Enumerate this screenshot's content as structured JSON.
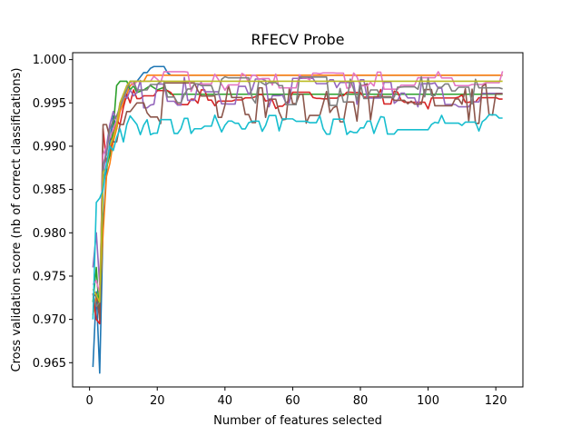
{
  "chart_data": {
    "type": "line",
    "title": "RFECV Probe",
    "xlabel": "Number of features selected",
    "ylabel": "Cross validation score (nb of correct classifications)",
    "xlim": [
      -5,
      128
    ],
    "ylim": [
      0.9622,
      1.0008
    ],
    "xticks": [
      0,
      20,
      40,
      60,
      80,
      100,
      120
    ],
    "yticks": [
      0.965,
      0.97,
      0.975,
      0.98,
      0.985,
      0.99,
      0.995,
      1.0
    ],
    "ytick_labels": [
      "0.965",
      "0.970",
      "0.975",
      "0.980",
      "0.985",
      "0.990",
      "0.995",
      "1.000"
    ],
    "grid": false,
    "x_start": 1,
    "x_end": 122,
    "series": [
      {
        "color": "#1f77b4",
        "values": [
          [
            1,
            0.9645
          ],
          [
            2,
            0.9732
          ],
          [
            3,
            0.9638
          ],
          [
            4,
            0.981
          ],
          [
            5,
            0.987
          ],
          [
            6,
            0.9905
          ],
          [
            7,
            0.9935
          ],
          [
            8,
            0.992
          ],
          [
            9,
            0.9945
          ],
          [
            10,
            0.996
          ],
          [
            11,
            0.9965
          ],
          [
            12,
            0.9975
          ],
          [
            14,
            0.9975
          ],
          [
            15,
            0.998
          ],
          [
            16,
            0.9985
          ],
          [
            17,
            0.9985
          ],
          [
            18,
            0.999
          ],
          [
            19,
            0.9992
          ],
          [
            22,
            0.9992
          ],
          [
            23,
            0.9985
          ],
          [
            24,
            0.9982
          ],
          [
            120,
            0.9982
          ],
          [
            122,
            0.9982
          ]
        ]
      },
      {
        "color": "#ff7f0e",
        "values": [
          [
            1,
            0.9705
          ],
          [
            2,
            0.9725
          ],
          [
            3,
            0.972
          ],
          [
            4,
            0.98
          ],
          [
            5,
            0.9865
          ],
          [
            6,
            0.988
          ],
          [
            7,
            0.9905
          ],
          [
            8,
            0.992
          ],
          [
            9,
            0.994
          ],
          [
            10,
            0.995
          ],
          [
            11,
            0.996
          ],
          [
            12,
            0.997
          ],
          [
            14,
            0.9975
          ],
          [
            16,
            0.9975
          ],
          [
            17,
            0.9982
          ],
          [
            122,
            0.9982
          ]
        ]
      },
      {
        "color": "#2ca02c",
        "values": [
          [
            1,
            0.972
          ],
          [
            2,
            0.976
          ],
          [
            3,
            0.97
          ],
          [
            4,
            0.986
          ],
          [
            5,
            0.9875
          ],
          [
            6,
            0.989
          ],
          [
            7,
            0.992
          ],
          [
            8,
            0.997
          ],
          [
            9,
            0.9975
          ],
          [
            11,
            0.9975
          ],
          [
            12,
            0.9965
          ],
          [
            13,
            0.997
          ],
          [
            14,
            0.9962
          ],
          [
            16,
            0.9965
          ],
          [
            18,
            0.997
          ],
          [
            20,
            0.9965
          ],
          [
            22,
            0.9968
          ],
          [
            24,
            0.996
          ],
          [
            122,
            0.996
          ]
        ]
      },
      {
        "color": "#d62728",
        "values": [
          [
            1,
            0.973
          ],
          [
            2,
            0.97
          ],
          [
            3,
            0.9695
          ],
          [
            4,
            0.992
          ],
          [
            5,
            0.988
          ],
          [
            6,
            0.9895
          ],
          [
            7,
            0.991
          ],
          [
            8,
            0.993
          ],
          [
            9,
            0.9925
          ],
          [
            10,
            0.9945
          ],
          [
            11,
            0.996
          ],
          [
            12,
            0.995
          ],
          [
            13,
            0.9965
          ],
          [
            14,
            0.9955
          ]
        ]
      },
      {
        "color": "#9467bd",
        "values": [
          [
            1,
            0.976
          ],
          [
            2,
            0.98
          ],
          [
            3,
            0.974
          ],
          [
            4,
            0.9865
          ],
          [
            5,
            0.99
          ],
          [
            6,
            0.9925
          ],
          [
            7,
            0.994
          ],
          [
            8,
            0.993
          ],
          [
            9,
            0.995
          ],
          [
            10,
            0.996
          ],
          [
            11,
            0.9955
          ],
          [
            12,
            0.9965
          ],
          [
            13,
            0.9958
          ],
          [
            14,
            0.9962
          ]
        ]
      },
      {
        "color": "#8c564b",
        "values": [
          [
            1,
            0.9725
          ],
          [
            2,
            0.973
          ],
          [
            3,
            0.97
          ],
          [
            4,
            0.9925
          ],
          [
            5,
            0.9925
          ],
          [
            6,
            0.991
          ],
          [
            7,
            0.9905
          ],
          [
            8,
            0.9905
          ],
          [
            9,
            0.9925
          ],
          [
            10,
            0.9925
          ],
          [
            11,
            0.994
          ],
          [
            12,
            0.994
          ],
          [
            13,
            0.9945
          ],
          [
            14,
            0.995
          ]
        ]
      },
      {
        "color": "#e377c2",
        "values": [
          [
            1,
            0.974
          ],
          [
            2,
            0.9745
          ],
          [
            3,
            0.973
          ],
          [
            4,
            0.989
          ],
          [
            5,
            0.99
          ],
          [
            6,
            0.991
          ],
          [
            7,
            0.992
          ],
          [
            8,
            0.993
          ],
          [
            9,
            0.9945
          ],
          [
            10,
            0.996
          ],
          [
            11,
            0.997
          ],
          [
            12,
            0.9975
          ],
          [
            13,
            0.997
          ],
          [
            14,
            0.9975
          ]
        ]
      },
      {
        "color": "#7f7f7f",
        "values": [
          [
            1,
            0.973
          ],
          [
            2,
            0.9715
          ],
          [
            3,
            0.972
          ],
          [
            4,
            0.988
          ],
          [
            5,
            0.989
          ],
          [
            6,
            0.992
          ],
          [
            7,
            0.993
          ],
          [
            8,
            0.9935
          ],
          [
            9,
            0.9945
          ],
          [
            10,
            0.9955
          ],
          [
            11,
            0.9965
          ],
          [
            12,
            0.9975
          ],
          [
            13,
            0.9975
          ],
          [
            14,
            0.9965
          ]
        ]
      },
      {
        "color": "#bcbd22",
        "values": [
          [
            1,
            0.9735
          ],
          [
            2,
            0.9728
          ],
          [
            3,
            0.972
          ],
          [
            4,
            0.987
          ],
          [
            5,
            0.9875
          ],
          [
            6,
            0.99
          ],
          [
            7,
            0.991
          ],
          [
            8,
            0.9925
          ],
          [
            9,
            0.995
          ],
          [
            10,
            0.996
          ],
          [
            11,
            0.997
          ],
          [
            12,
            0.9975
          ],
          [
            122,
            0.9975
          ]
        ]
      },
      {
        "color": "#17becf",
        "values": [
          [
            1,
            0.97
          ],
          [
            2,
            0.9835
          ],
          [
            3,
            0.984
          ],
          [
            4,
            0.985
          ],
          [
            5,
            0.988
          ],
          [
            6,
            0.99
          ],
          [
            7,
            0.9895
          ],
          [
            8,
            0.991
          ],
          [
            9,
            0.992
          ],
          [
            10,
            0.9905
          ],
          [
            11,
            0.9925
          ],
          [
            12,
            0.9935
          ],
          [
            13,
            0.993
          ],
          [
            14,
            0.9925
          ]
        ]
      }
    ]
  }
}
